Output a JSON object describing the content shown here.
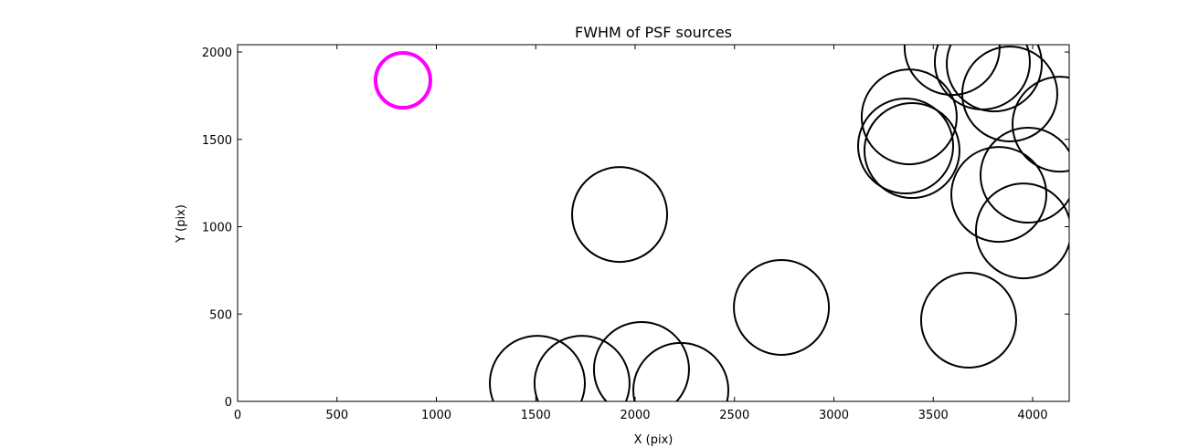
{
  "chart_data": {
    "type": "scatter",
    "title": "FWHM of PSF sources",
    "x_label": "X (pix)",
    "y_label": "Y (pix)",
    "xlim": [
      0,
      4184
    ],
    "ylim": [
      0,
      2042
    ],
    "xticks": [
      0,
      500,
      1000,
      1500,
      2000,
      2500,
      3000,
      3500,
      4000
    ],
    "yticks": [
      0,
      500,
      1000,
      1500,
      2000
    ],
    "series": [
      {
        "color": "#000000",
        "x": [
          1508,
          1733,
          2032,
          2230,
          1922,
          2736,
          3678,
          3361,
          3379,
          3393,
          3595,
          3747,
          3807,
          3885,
          4138,
          3977,
          3830,
          3954
        ],
        "values": [
          104,
          104,
          183,
          63,
          1070,
          538,
          465,
          1462,
          1629,
          1436,
          2026,
          1943,
          1932,
          1760,
          1587,
          1295,
          1185,
          976
        ]
      },
      {
        "color": "#ff00ff",
        "x": [
          832
        ],
        "values": [
          1838
        ]
      }
    ]
  }
}
